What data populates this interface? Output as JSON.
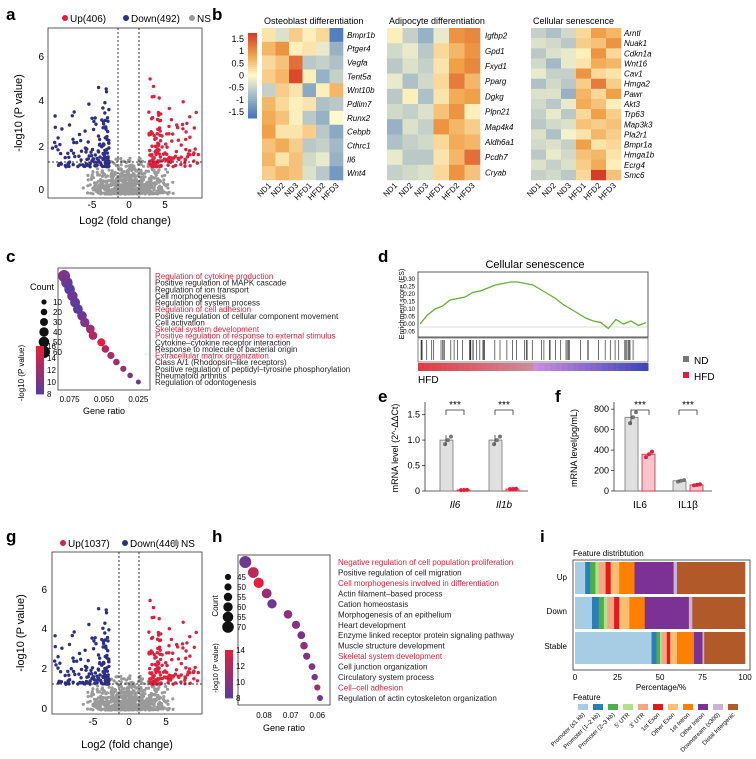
{
  "panels": {
    "a": {
      "letter": "a",
      "legend": {
        "up": "Up(406)",
        "down": "Down(492)",
        "ns": "NS"
      },
      "xlabel": "Log2 (fold change)",
      "ylabel": "-log10 (P value)",
      "xticks": [
        "-5",
        "0",
        "5"
      ],
      "yticks": [
        "0",
        "2",
        "4",
        "6"
      ]
    },
    "b": {
      "letter": "b",
      "colorbar_ticks": [
        "1.5",
        "1",
        "0.5",
        "0",
        "-0.5",
        "-1",
        "-1.5"
      ],
      "samples": [
        "ND1",
        "ND2",
        "ND3",
        "HFD1",
        "HFD2",
        "HFD3"
      ],
      "heatmaps": [
        {
          "title": "Osteoblast differentiation",
          "genes": [
            "Bmpr1b",
            "Ptger4",
            "Vegfa",
            "Tent5a",
            "Wnt10b",
            "Pdlim7",
            "Runx2",
            "Cebpb",
            "Cthrc1",
            "Il6",
            "Wnt4"
          ],
          "values": [
            [
              0.2,
              -0.3,
              0.4,
              0.1,
              0.3,
              -1.5
            ],
            [
              0.6,
              0.9,
              0.1,
              0.2,
              -0.2,
              -0.9
            ],
            [
              0.3,
              0.5,
              1.2,
              -0.6,
              -0.5,
              -0.7
            ],
            [
              0.4,
              0.6,
              1.5,
              0.1,
              -0.9,
              -0.5
            ],
            [
              -0.5,
              0.4,
              0.2,
              -1.0,
              0.1,
              0.6
            ],
            [
              0.6,
              0.3,
              0.1,
              0.2,
              -0.7,
              -0.6
            ],
            [
              0.7,
              0.5,
              0.1,
              -0.6,
              -0.9,
              0.0
            ],
            [
              0.8,
              0.2,
              0.2,
              0.4,
              -0.6,
              -1.0
            ],
            [
              0.5,
              0.7,
              0.4,
              -0.6,
              -0.5,
              -0.8
            ],
            [
              0.6,
              0.2,
              0.5,
              -0.4,
              -0.2,
              -0.9
            ],
            [
              0.4,
              0.6,
              0.5,
              -0.3,
              -0.6,
              -1.2
            ]
          ]
        },
        {
          "title": "Adipocyte differentiation",
          "genes": [
            "Igfbp2",
            "Gpd1",
            "Fxyd1",
            "Pparg",
            "Dgkg",
            "Plpn21",
            "Map4k4",
            "Aldh6a1",
            "Pcdh7",
            "Cryab"
          ],
          "values": [
            [
              0.1,
              -0.5,
              -0.9,
              -0.2,
              0.9,
              1.0
            ],
            [
              -0.4,
              -0.2,
              -0.6,
              0.3,
              0.6,
              0.9
            ],
            [
              -0.6,
              -0.3,
              -0.5,
              0.2,
              0.8,
              1.0
            ],
            [
              -0.2,
              -0.7,
              -0.4,
              0.3,
              1.1,
              0.6
            ],
            [
              -0.6,
              0.1,
              -0.7,
              0.2,
              0.7,
              0.8
            ],
            [
              -0.4,
              -0.5,
              -0.3,
              0.5,
              0.9,
              0.1
            ],
            [
              -0.9,
              -0.3,
              -0.5,
              0.9,
              0.6,
              0.4
            ],
            [
              -0.7,
              -0.5,
              -0.4,
              0.3,
              0.7,
              0.6
            ],
            [
              -0.2,
              -0.6,
              -0.6,
              0.2,
              0.6,
              1.2
            ],
            [
              -0.5,
              -0.4,
              -0.3,
              0.3,
              0.9,
              0.5
            ]
          ]
        },
        {
          "title": "Cellular senescence",
          "genes": [
            "Arntl",
            "Nuak1",
            "Cdkn1a",
            "Wnt16",
            "Cav1",
            "Hmga2",
            "Pawr",
            "Akt3",
            "Trp63",
            "Map3k3",
            "Pla2r1",
            "Bmpr1a",
            "Hmga1b",
            "Ecrg4",
            "Smc6"
          ],
          "values": [
            [
              -0.5,
              -0.7,
              -0.4,
              0.3,
              0.8,
              0.6
            ],
            [
              -0.3,
              -0.4,
              -0.6,
              0.4,
              0.5,
              0.9
            ],
            [
              -0.6,
              -0.3,
              -0.2,
              0.1,
              0.9,
              0.3
            ],
            [
              -0.4,
              -0.8,
              -0.2,
              0.2,
              0.7,
              0.6
            ],
            [
              -0.2,
              -0.5,
              -0.5,
              0.9,
              0.3,
              0.2
            ],
            [
              -0.7,
              -0.4,
              -0.6,
              0.4,
              1.1,
              0.4
            ],
            [
              -0.3,
              -0.3,
              -0.9,
              0.6,
              0.3,
              0.8
            ],
            [
              -0.4,
              -0.6,
              -0.2,
              0.7,
              0.5,
              0.1
            ],
            [
              -0.5,
              -0.2,
              -0.6,
              0.3,
              0.8,
              0.4
            ],
            [
              -0.6,
              -0.4,
              -0.3,
              0.5,
              0.4,
              0.5
            ],
            [
              -0.3,
              -0.7,
              -0.1,
              0.2,
              0.6,
              0.4
            ],
            [
              -0.4,
              -0.3,
              -0.5,
              0.8,
              0.2,
              0.3
            ],
            [
              -0.6,
              -0.2,
              -0.4,
              0.5,
              0.6,
              0.2
            ],
            [
              -0.3,
              -0.5,
              -0.3,
              0.4,
              0.7,
              0.1
            ],
            [
              -0.5,
              -0.4,
              -0.6,
              0.3,
              1.6,
              0.5
            ]
          ]
        }
      ]
    },
    "c": {
      "letter": "c",
      "count_title": "Count",
      "count_values": [
        "10",
        "20",
        "30",
        "40",
        "50",
        "60"
      ],
      "color_ticks": [
        "16",
        "14",
        "12",
        "10",
        "8"
      ],
      "color_title": "-log10 (P value)",
      "xlabel": "Gene ratio",
      "xticks": [
        "0.075",
        "0.050",
        "0.025"
      ],
      "terms": [
        {
          "label": "Regulation of cytokine production",
          "ratio": 0.079,
          "count": 60,
          "logp": 10,
          "red": true
        },
        {
          "label": "Positive regulation of MAPK cascade",
          "ratio": 0.077,
          "count": 55,
          "logp": 9,
          "red": false
        },
        {
          "label": "Regulation of ion transport",
          "ratio": 0.075,
          "count": 50,
          "logp": 8,
          "red": false
        },
        {
          "label": "Cell morphogenesis",
          "ratio": 0.073,
          "count": 48,
          "logp": 9,
          "red": false
        },
        {
          "label": "Regulation of system process",
          "ratio": 0.071,
          "count": 45,
          "logp": 8.5,
          "red": false
        },
        {
          "label": "Regulation of cell adhesion",
          "ratio": 0.069,
          "count": 44,
          "logp": 8,
          "red": true
        },
        {
          "label": "Positive regulation of cellular component movement",
          "ratio": 0.066,
          "count": 42,
          "logp": 9,
          "red": false
        },
        {
          "label": "Cell activation",
          "ratio": 0.064,
          "count": 40,
          "logp": 10,
          "red": false
        },
        {
          "label": "Skeletal system development",
          "ratio": 0.06,
          "count": 36,
          "logp": 12,
          "red": true
        },
        {
          "label": "Positive regulation of response to external stimulus",
          "ratio": 0.058,
          "count": 34,
          "logp": 13,
          "red": true
        },
        {
          "label": "Cytokine–cytokine receptor interaction",
          "ratio": 0.052,
          "count": 30,
          "logp": 16,
          "red": false
        },
        {
          "label": "Response to molecule of bacterial origin",
          "ratio": 0.049,
          "count": 27,
          "logp": 13,
          "red": false
        },
        {
          "label": "Extracellular matrix organization",
          "ratio": 0.045,
          "count": 24,
          "logp": 12.5,
          "red": true
        },
        {
          "label": "Class A/1 (Rhodopsin–like receptors)",
          "ratio": 0.041,
          "count": 20,
          "logp": 11.5,
          "red": false
        },
        {
          "label": "Positive regulation of peptidyl–tyrosine phosphorylation",
          "ratio": 0.036,
          "count": 17,
          "logp": 11,
          "red": false
        },
        {
          "label": "Rheumatoid arthritis",
          "ratio": 0.031,
          "count": 13,
          "logp": 10,
          "red": false
        },
        {
          "label": "Regulation of odontogenesis",
          "ratio": 0.025,
          "count": 8,
          "logp": 9,
          "red": false
        }
      ]
    },
    "d": {
      "letter": "d",
      "title": "Cellular senescence",
      "ylabel": "Enrichment score (ES)",
      "yticks": [
        "0.30",
        "0.25",
        "0.20",
        "0.15",
        "0.10",
        "0.05",
        "0.00",
        "-0.05"
      ],
      "group_label": "HFD",
      "es_curve": [
        0.0,
        0.06,
        0.1,
        0.12,
        0.16,
        0.17,
        0.18,
        0.21,
        0.22,
        0.24,
        0.26,
        0.27,
        0.28,
        0.28,
        0.27,
        0.26,
        0.23,
        0.2,
        0.17,
        0.13,
        0.1,
        0.07,
        0.04,
        0.02,
        0.01,
        -0.03,
        0.03,
        0.0,
        0.02,
        -0.01,
        0.01
      ]
    },
    "e": {
      "letter": "e",
      "ylabel": "mRNA level (2^-ΔΔCt)",
      "yticks": [
        "0",
        "0.5",
        "1.0",
        "1.5"
      ],
      "categories": [
        "Il6",
        "Il1b"
      ],
      "sig": "***",
      "nd_values": [
        1.0,
        1.0
      ],
      "hfd_values": [
        0.02,
        0.04
      ]
    },
    "f": {
      "letter": "f",
      "ylabel": "mRNA level(pg/mL)",
      "yticks": [
        "0",
        "200",
        "400",
        "600",
        "800"
      ],
      "categories": [
        "IL6",
        "IL1β"
      ],
      "sig": "***",
      "nd_values": [
        720,
        100
      ],
      "hfd_values": [
        360,
        60
      ],
      "legend": {
        "nd": "ND",
        "hfd": "HFD"
      }
    },
    "g": {
      "letter": "g",
      "legend": {
        "up": "Up(1037)",
        "down": "Down(446)",
        "ns": "NS"
      },
      "xlabel": "Log2 (fold change)",
      "ylabel": "-log10 (P value)",
      "xticks": [
        "-5",
        "0",
        "5"
      ],
      "yticks": [
        "0",
        "2",
        "4",
        "6"
      ]
    },
    "h": {
      "letter": "h",
      "count_title": "Count",
      "count_values": [
        "45",
        "50",
        "55",
        "60",
        "65",
        "70"
      ],
      "color_ticks": [
        "14",
        "12",
        "10",
        "8"
      ],
      "color_title": "-log10 (P value)",
      "xlabel": "Gene ratio",
      "xticks": [
        "0.08",
        "0.07",
        "0.06"
      ],
      "terms": [
        {
          "label": "Negative regulation of cell population proliferation",
          "ratio": 0.087,
          "count": 72,
          "logp": 9,
          "red": true
        },
        {
          "label": "Positive regulation of cell migration",
          "ratio": 0.084,
          "count": 66,
          "logp": 13,
          "red": false
        },
        {
          "label": "Cell morphogenesis involved in differentiation",
          "ratio": 0.082,
          "count": 64,
          "logp": 15,
          "red": true
        },
        {
          "label": "Actin filament–based process",
          "ratio": 0.079,
          "count": 62,
          "logp": 11,
          "red": false
        },
        {
          "label": "Cation homeostasis",
          "ratio": 0.077,
          "count": 60,
          "logp": 9,
          "red": false
        },
        {
          "label": "Morphogenesis of an epithelium",
          "ratio": 0.071,
          "count": 56,
          "logp": 10.5,
          "red": false
        },
        {
          "label": "Heart development",
          "ratio": 0.068,
          "count": 54,
          "logp": 10,
          "red": false
        },
        {
          "label": "Enzyme linked receptor protein signaling pathway",
          "ratio": 0.066,
          "count": 52,
          "logp": 9.5,
          "red": false
        },
        {
          "label": "Muscle structure development",
          "ratio": 0.065,
          "count": 51,
          "logp": 10.5,
          "red": false
        },
        {
          "label": "Skeletal system development",
          "ratio": 0.064,
          "count": 50,
          "logp": 10,
          "red": true
        },
        {
          "label": "Cell junction organization",
          "ratio": 0.062,
          "count": 48,
          "logp": 10,
          "red": false
        },
        {
          "label": "Circulatory system process",
          "ratio": 0.061,
          "count": 46,
          "logp": 9.5,
          "red": false
        },
        {
          "label": "Cell–cell adhesion",
          "ratio": 0.06,
          "count": 45,
          "logp": 12,
          "red": true
        },
        {
          "label": "Regulation of actin cytoskeleton organization",
          "ratio": 0.059,
          "count": 44,
          "logp": 9,
          "red": false
        }
      ]
    },
    "i": {
      "letter": "i",
      "title": "Feature distribtution",
      "xlabel": "Percentage/%",
      "xticks": [
        "0",
        "25",
        "50",
        "75",
        "100"
      ],
      "rows": [
        "Up",
        "Down",
        "Stable"
      ],
      "legend_title": "Feature",
      "features": [
        "Promoter (≤1 kb)",
        "Promoter (1–2 kb)",
        "Promoter (2–3 kb)",
        "5' UTR",
        "3' UTR",
        "1st Exon",
        "Other Exon",
        "1st Intron",
        "Other Intron",
        "Downstream (≤300)",
        "Distal Intergenic"
      ],
      "colors": [
        "#a6cde3",
        "#2a7fb8",
        "#4daf4a",
        "#b2df8a",
        "#f4a582",
        "#e31a1c",
        "#fdbf6f",
        "#ff7f00",
        "#7b3294",
        "#cab2d6",
        "#b15928"
      ],
      "percentages": [
        [
          6,
          3,
          3,
          2,
          4,
          3,
          5,
          9,
          23,
          2,
          40
        ],
        [
          10,
          4,
          3,
          2,
          4,
          3,
          6,
          9,
          26,
          2,
          31
        ],
        [
          45,
          3,
          2,
          1,
          3,
          2,
          4,
          10,
          5,
          1,
          24
        ]
      ]
    }
  }
}
